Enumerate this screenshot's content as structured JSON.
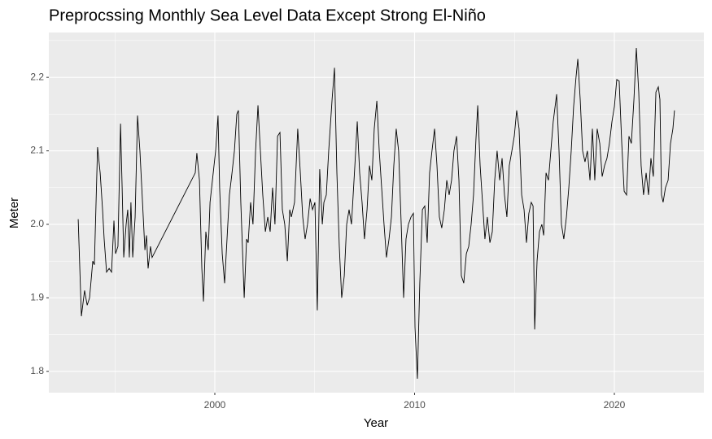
{
  "chart_data": {
    "type": "line",
    "title": "Preprocssing Monthly Sea Level Data Except Strong El-Niño",
    "x_label": "Year",
    "y_label": "Meter",
    "color": "#000000",
    "grid": true,
    "xlim": [
      1991.69,
      2024.48
    ],
    "ylim": [
      1.771,
      2.261
    ],
    "xticks": [
      2000,
      2010,
      2020
    ],
    "yticks": [
      1.8,
      1.9,
      {
        "value": 2,
        "label": "2.0"
      },
      2.1,
      2.2
    ],
    "x": [
      1993.16,
      1993.32,
      1993.48,
      1993.61,
      1993.73,
      1993.89,
      1993.97,
      1994.13,
      1994.26,
      1994.38,
      1994.46,
      1994.58,
      1994.71,
      1994.83,
      1994.95,
      1995.03,
      1995.15,
      1995.28,
      1995.36,
      1995.44,
      1995.56,
      1995.64,
      1995.72,
      1995.8,
      1995.89,
      1996.01,
      1996.13,
      1996.25,
      1996.38,
      1996.5,
      1996.58,
      1996.66,
      1996.78,
      1996.86,
      1999.02,
      1999.1,
      1999.23,
      1999.35,
      1999.43,
      1999.55,
      1999.67,
      1999.76,
      1999.88,
      2000.04,
      2000.16,
      2000.24,
      2000.37,
      2000.49,
      2000.61,
      2000.73,
      2000.86,
      2000.98,
      2001.1,
      2001.18,
      2001.3,
      2001.47,
      2001.59,
      2001.67,
      2001.79,
      2001.91,
      2002.04,
      2002.16,
      2002.28,
      2002.4,
      2002.53,
      2002.65,
      2002.77,
      2002.89,
      2003.01,
      2003.14,
      2003.26,
      2003.38,
      2003.5,
      2003.63,
      2003.75,
      2003.83,
      2003.99,
      2004.15,
      2004.28,
      2004.4,
      2004.52,
      2004.64,
      2004.77,
      2004.89,
      2005.01,
      2005.13,
      2005.25,
      2005.38,
      2005.46,
      2005.58,
      2005.7,
      2005.87,
      2005.99,
      2006.11,
      2006.23,
      2006.35,
      2006.48,
      2006.6,
      2006.72,
      2006.84,
      2007.01,
      2007.13,
      2007.25,
      2007.37,
      2007.49,
      2007.62,
      2007.74,
      2007.86,
      2007.98,
      2008.11,
      2008.23,
      2008.35,
      2008.47,
      2008.59,
      2008.72,
      2008.84,
      2008.96,
      2009.08,
      2009.2,
      2009.33,
      2009.45,
      2009.57,
      2009.69,
      2009.82,
      2009.94,
      2010.02,
      2010.14,
      2010.26,
      2010.39,
      2010.51,
      2010.63,
      2010.75,
      2010.87,
      2011.0,
      2011.12,
      2011.24,
      2011.36,
      2011.49,
      2011.61,
      2011.73,
      2011.85,
      2011.97,
      2012.1,
      2012.22,
      2012.34,
      2012.46,
      2012.59,
      2012.71,
      2012.83,
      2012.95,
      2013.07,
      2013.16,
      2013.28,
      2013.4,
      2013.52,
      2013.64,
      2013.77,
      2013.89,
      2014.01,
      2014.13,
      2014.26,
      2014.38,
      2014.5,
      2014.62,
      2014.74,
      2014.87,
      2014.99,
      2015.11,
      2015.23,
      2015.36,
      2015.48,
      2015.6,
      2015.72,
      2015.84,
      2015.93,
      2016.01,
      2016.13,
      2016.25,
      2016.37,
      2016.46,
      2016.58,
      2016.7,
      2016.82,
      2016.94,
      2017.11,
      2017.23,
      2017.35,
      2017.47,
      2017.6,
      2017.72,
      2017.84,
      2017.96,
      2018.08,
      2018.17,
      2018.29,
      2018.41,
      2018.53,
      2018.65,
      2018.78,
      2018.9,
      2019.02,
      2019.14,
      2019.27,
      2019.39,
      2019.51,
      2019.63,
      2019.75,
      2019.88,
      2020.0,
      2020.12,
      2020.24,
      2020.37,
      2020.49,
      2020.61,
      2020.73,
      2020.85,
      2020.98,
      2021.1,
      2021.22,
      2021.34,
      2021.46,
      2021.59,
      2021.71,
      2021.83,
      2021.95,
      2022.08,
      2022.2,
      2022.28,
      2022.36,
      2022.44,
      2022.56,
      2022.69,
      2022.81,
      2022.93,
      2023.01
    ],
    "values": [
      2.007,
      1.875,
      1.91,
      1.89,
      1.9,
      1.95,
      1.945,
      2.105,
      2.07,
      2.02,
      1.98,
      1.935,
      1.94,
      1.935,
      2.005,
      1.96,
      1.97,
      2.137,
      2.05,
      1.955,
      2.0,
      2.02,
      1.955,
      2.03,
      1.955,
      2.01,
      2.148,
      2.1,
      2.03,
      1.965,
      1.985,
      1.94,
      1.97,
      1.955,
      2.07,
      2.097,
      2.06,
      1.94,
      1.895,
      1.99,
      1.965,
      2.03,
      2.06,
      2.1,
      2.148,
      2.05,
      1.96,
      1.92,
      1.98,
      2.04,
      2.07,
      2.1,
      2.15,
      2.155,
      2.03,
      1.9,
      1.98,
      1.975,
      2.03,
      2.0,
      2.1,
      2.162,
      2.1,
      2.04,
      1.99,
      2.01,
      1.99,
      2.05,
      2.0,
      2.12,
      2.125,
      2.02,
      2.0,
      1.95,
      2.02,
      2.01,
      2.03,
      2.13,
      2.07,
      2.01,
      1.98,
      2.0,
      2.035,
      2.02,
      2.03,
      1.883,
      2.075,
      2.0,
      2.03,
      2.04,
      2.1,
      2.17,
      2.213,
      2.07,
      1.97,
      1.9,
      1.93,
      2.0,
      2.02,
      2.0,
      2.08,
      2.14,
      2.07,
      2.03,
      1.98,
      2.02,
      2.08,
      2.06,
      2.13,
      2.168,
      2.1,
      2.05,
      2.0,
      1.955,
      1.98,
      2.01,
      2.08,
      2.13,
      2.1,
      2.0,
      1.9,
      1.98,
      2.0,
      2.01,
      2.015,
      1.86,
      1.79,
      1.92,
      2.02,
      2.025,
      1.975,
      2.07,
      2.1,
      2.13,
      2.08,
      2.01,
      1.995,
      2.02,
      2.06,
      2.04,
      2.06,
      2.1,
      2.12,
      2.06,
      1.93,
      1.92,
      1.96,
      1.97,
      2.0,
      2.04,
      2.115,
      2.162,
      2.08,
      2.03,
      1.98,
      2.01,
      1.975,
      1.99,
      2.06,
      2.1,
      2.06,
      2.09,
      2.04,
      2.01,
      2.08,
      2.1,
      2.12,
      2.155,
      2.13,
      2.04,
      2.02,
      1.975,
      2.015,
      2.03,
      2.025,
      1.857,
      1.95,
      1.99,
      2.0,
      1.985,
      2.07,
      2.06,
      2.1,
      2.14,
      2.177,
      2.1,
      2.0,
      1.98,
      2.01,
      2.05,
      2.1,
      2.16,
      2.2,
      2.225,
      2.17,
      2.1,
      2.085,
      2.1,
      2.06,
      2.13,
      2.06,
      2.13,
      2.11,
      2.065,
      2.08,
      2.09,
      2.11,
      2.14,
      2.16,
      2.197,
      2.195,
      2.11,
      2.045,
      2.04,
      2.12,
      2.11,
      2.17,
      2.24,
      2.18,
      2.08,
      2.04,
      2.07,
      2.04,
      2.09,
      2.065,
      2.18,
      2.187,
      2.17,
      2.04,
      2.03,
      2.05,
      2.06,
      2.11,
      2.13,
      2.155
    ]
  }
}
